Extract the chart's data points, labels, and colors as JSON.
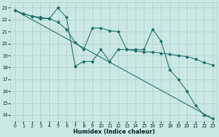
{
  "xlabel": "Humidex (Indice chaleur)",
  "bg_color": "#cce8e4",
  "grid_color": "#a8c8c4",
  "line_color": "#1a6e6a",
  "xlim": [
    -0.5,
    23.5
  ],
  "ylim": [
    13.5,
    23.5
  ],
  "yticks": [
    14,
    15,
    16,
    17,
    18,
    19,
    20,
    21,
    22,
    23
  ],
  "xticks": [
    0,
    1,
    2,
    3,
    4,
    5,
    6,
    7,
    8,
    9,
    10,
    11,
    12,
    13,
    14,
    15,
    16,
    17,
    18,
    19,
    20,
    21,
    22,
    23
  ],
  "series1": {
    "x": [
      0,
      1,
      2,
      3,
      4,
      5,
      6,
      7,
      8,
      9,
      10,
      11,
      12,
      13,
      14,
      15,
      16,
      17,
      18,
      19,
      20,
      21,
      22,
      23
    ],
    "y": [
      22.8,
      22.5,
      22.3,
      22.2,
      22.1,
      23.0,
      22.2,
      18.1,
      18.5,
      18.5,
      19.5,
      18.5,
      19.5,
      19.5,
      19.5,
      19.5,
      21.2,
      20.2,
      17.8,
      17.0,
      16.0,
      14.8,
      14.0,
      13.7
    ]
  },
  "series2": {
    "x": [
      0,
      1,
      2,
      3,
      4,
      5,
      6,
      7,
      8,
      9,
      10,
      11,
      12,
      13,
      14,
      15,
      16,
      17,
      18,
      19,
      20,
      21,
      22,
      23
    ],
    "y": [
      22.8,
      22.5,
      22.3,
      22.1,
      22.1,
      21.8,
      21.2,
      20.1,
      19.5,
      21.3,
      21.3,
      21.1,
      21.0,
      19.5,
      19.4,
      19.3,
      19.3,
      19.2,
      19.1,
      19.0,
      18.9,
      18.7,
      18.4,
      18.2
    ]
  },
  "series3": {
    "x": [
      0,
      23
    ],
    "y": [
      22.8,
      13.7
    ]
  }
}
